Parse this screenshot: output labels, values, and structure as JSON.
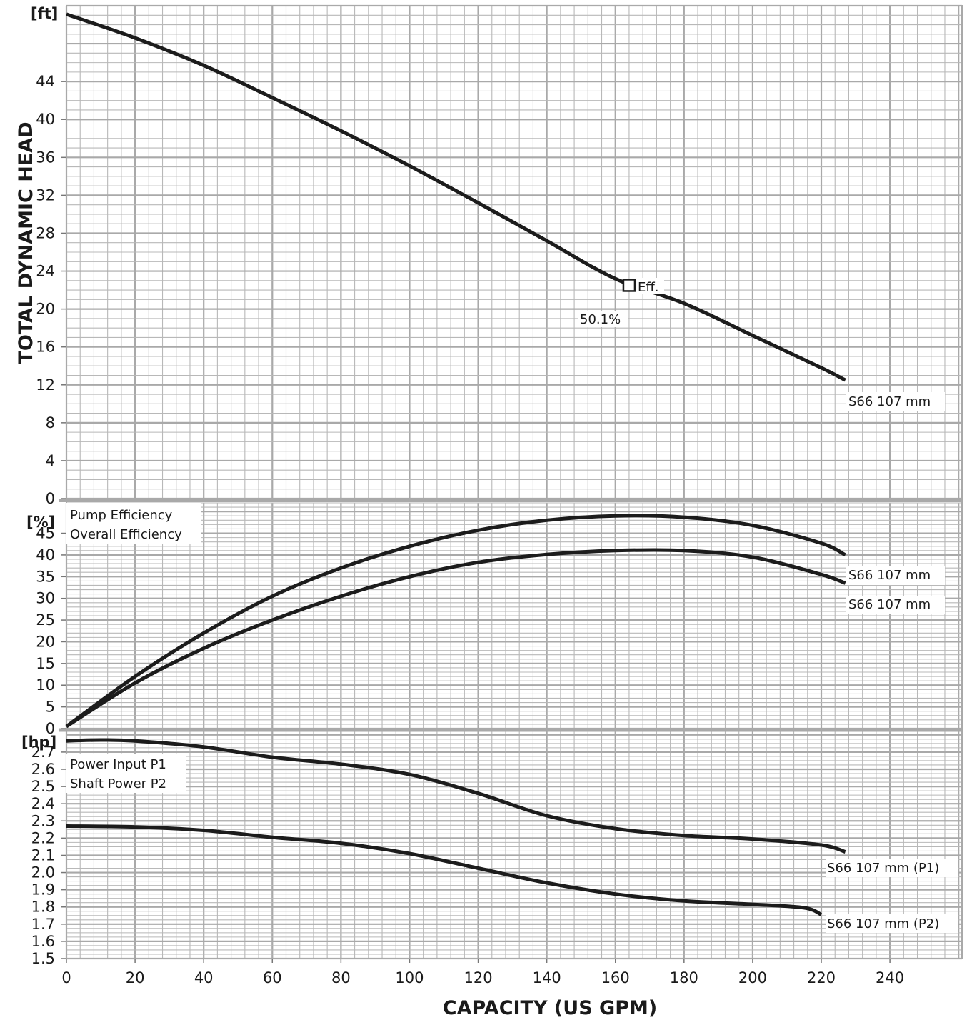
{
  "chart_data": [
    {
      "type": "line",
      "panel": "head",
      "unit_label": "[ft]",
      "ylabel": "TOTAL DYNAMIC HEAD",
      "ylim": [
        0,
        52
      ],
      "y_ticks": [
        "0",
        "4",
        "8",
        "12",
        "16",
        "20",
        "24",
        "28",
        "32",
        "36",
        "40",
        "44"
      ],
      "series": [
        {
          "name": "S66 107 mm",
          "x": [
            0,
            20,
            40,
            60,
            80,
            100,
            120,
            140,
            160,
            180,
            200,
            220,
            227
          ],
          "values": [
            51.1,
            48.6,
            45.7,
            42.3,
            38.8,
            35.1,
            31.2,
            27.2,
            23.2,
            20.6,
            17.2,
            13.8,
            12.5
          ]
        }
      ],
      "annotations": [
        {
          "label": "Eff.",
          "value": "50.1%",
          "x": 164,
          "y": 22.5
        }
      ]
    },
    {
      "type": "line",
      "panel": "efficiency",
      "unit_label": "[%]",
      "ylim": [
        0,
        52
      ],
      "y_ticks": [
        "0",
        "5",
        "10",
        "15",
        "20",
        "25",
        "30",
        "35",
        "40",
        "45"
      ],
      "legend": [
        "Pump Efficiency",
        "Overall Efficiency"
      ],
      "series": [
        {
          "name": "S66 107 mm",
          "x": [
            0,
            20,
            40,
            60,
            80,
            100,
            120,
            140,
            160,
            180,
            200,
            220,
            227
          ],
          "values": [
            0.5,
            12,
            22,
            30.5,
            37,
            42,
            45.7,
            48,
            49,
            48.7,
            46.8,
            42.7,
            40
          ]
        },
        {
          "name": "S66 107 mm",
          "x": [
            0,
            20,
            40,
            60,
            80,
            100,
            120,
            140,
            160,
            180,
            200,
            220,
            227
          ],
          "values": [
            0.5,
            10.5,
            18.5,
            25,
            30.5,
            35,
            38.3,
            40.1,
            41,
            41,
            39.5,
            35.5,
            33.5
          ]
        }
      ]
    },
    {
      "type": "line",
      "panel": "power",
      "unit_label": "[hp]",
      "ylim": [
        1.5,
        2.82
      ],
      "y_ticks": [
        "1.5",
        "1.6",
        "1.7",
        "1.8",
        "1.9",
        "2.0",
        "2.1",
        "2.2",
        "2.3",
        "2.4",
        "2.5",
        "2.6",
        "2.7"
      ],
      "legend": [
        "Power Input P1",
        "Shaft Power P2"
      ],
      "series": [
        {
          "name": "S66 107 mm (P1)",
          "x": [
            0,
            10,
            20,
            40,
            60,
            80,
            100,
            120,
            140,
            160,
            180,
            200,
            220,
            227
          ],
          "values": [
            2.765,
            2.77,
            2.765,
            2.73,
            2.67,
            2.63,
            2.57,
            2.46,
            2.33,
            2.255,
            2.215,
            2.195,
            2.16,
            2.12
          ]
        },
        {
          "name": "S66 107 mm (P2)",
          "x": [
            0,
            20,
            40,
            60,
            80,
            100,
            120,
            140,
            160,
            180,
            200,
            215,
            220
          ],
          "values": [
            2.27,
            2.265,
            2.245,
            2.205,
            2.17,
            2.11,
            2.025,
            1.94,
            1.875,
            1.835,
            1.815,
            1.795,
            1.755
          ]
        }
      ]
    }
  ],
  "x_axis": {
    "xlabel": "CAPACITY (US GPM)",
    "xlim": [
      0,
      261
    ],
    "ticks": [
      "0",
      "20",
      "40",
      "60",
      "80",
      "100",
      "120",
      "140",
      "160",
      "180",
      "200",
      "220",
      "240"
    ]
  },
  "grid": true,
  "colors": {
    "grid": "#b8b8b8",
    "major_grid": "#a9a9a9",
    "curve": "#1c1c1c",
    "text": "#1a1a1a"
  }
}
